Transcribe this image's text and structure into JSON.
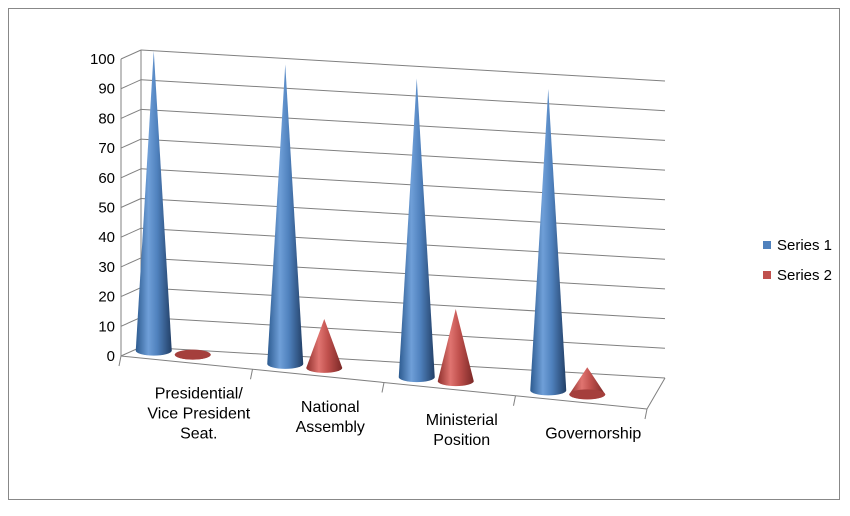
{
  "chart_data": {
    "type": "bar",
    "style": "3d-cone",
    "categories": [
      "Presidential/ Vice President Seat.",
      "National Assembly",
      "Ministerial Position",
      "Governorship"
    ],
    "category_lines": [
      [
        "Presidential/",
        "Vice President",
        "Seat."
      ],
      [
        "National",
        "Assembly"
      ],
      [
        "Ministerial",
        "Position"
      ],
      [
        "Governorship"
      ]
    ],
    "series": [
      {
        "name": "Series 1",
        "color": "#4f81bd",
        "values": [
          99,
          97,
          95,
          94
        ]
      },
      {
        "name": "Series 2",
        "color": "#c0504d",
        "values": [
          1,
          14,
          20,
          3
        ]
      }
    ],
    "y_ticks": [
      "0",
      "10",
      "20",
      "30",
      "40",
      "50",
      "60",
      "70",
      "80",
      "90",
      "100"
    ],
    "ylim": [
      0,
      100
    ],
    "grid": true,
    "legend_position": "right"
  }
}
